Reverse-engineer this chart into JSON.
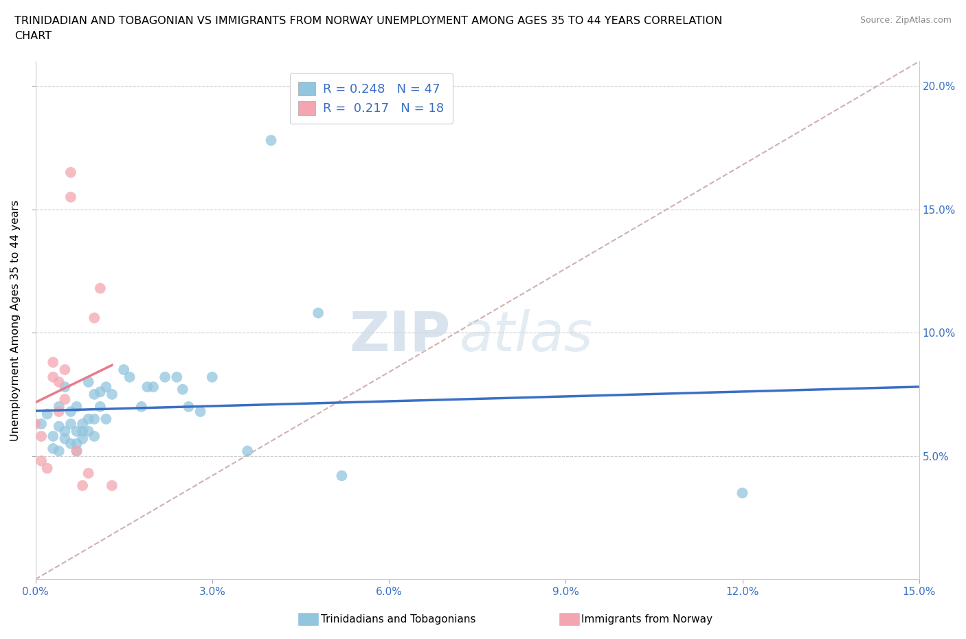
{
  "title": "TRINIDADIAN AND TOBAGONIAN VS IMMIGRANTS FROM NORWAY UNEMPLOYMENT AMONG AGES 35 TO 44 YEARS CORRELATION\nCHART",
  "source": "Source: ZipAtlas.com",
  "ylabel": "Unemployment Among Ages 35 to 44 years",
  "legend_label_blue": "Trinidadians and Tobagonians",
  "legend_label_pink": "Immigrants from Norway",
  "R_blue": 0.248,
  "N_blue": 47,
  "R_pink": 0.217,
  "N_pink": 18,
  "xlim": [
    0.0,
    0.15
  ],
  "ylim": [
    0.0,
    0.21
  ],
  "xticks": [
    0.0,
    0.03,
    0.06,
    0.09,
    0.12,
    0.15
  ],
  "yticks": [
    0.05,
    0.1,
    0.15,
    0.2
  ],
  "xtick_labels": [
    "0.0%",
    "3.0%",
    "6.0%",
    "9.0%",
    "12.0%",
    "15.0%"
  ],
  "ytick_labels_left": [],
  "ytick_labels_right": [
    "5.0%",
    "10.0%",
    "15.0%",
    "20.0%"
  ],
  "blue_scatter": [
    [
      0.001,
      0.063
    ],
    [
      0.002,
      0.067
    ],
    [
      0.003,
      0.058
    ],
    [
      0.003,
      0.053
    ],
    [
      0.004,
      0.062
    ],
    [
      0.004,
      0.07
    ],
    [
      0.004,
      0.052
    ],
    [
      0.005,
      0.06
    ],
    [
      0.005,
      0.078
    ],
    [
      0.005,
      0.057
    ],
    [
      0.006,
      0.063
    ],
    [
      0.006,
      0.068
    ],
    [
      0.006,
      0.055
    ],
    [
      0.007,
      0.07
    ],
    [
      0.007,
      0.055
    ],
    [
      0.007,
      0.052
    ],
    [
      0.007,
      0.06
    ],
    [
      0.008,
      0.06
    ],
    [
      0.008,
      0.057
    ],
    [
      0.008,
      0.063
    ],
    [
      0.009,
      0.06
    ],
    [
      0.009,
      0.065
    ],
    [
      0.009,
      0.08
    ],
    [
      0.01,
      0.058
    ],
    [
      0.01,
      0.065
    ],
    [
      0.01,
      0.075
    ],
    [
      0.011,
      0.07
    ],
    [
      0.011,
      0.076
    ],
    [
      0.012,
      0.065
    ],
    [
      0.012,
      0.078
    ],
    [
      0.013,
      0.075
    ],
    [
      0.015,
      0.085
    ],
    [
      0.016,
      0.082
    ],
    [
      0.018,
      0.07
    ],
    [
      0.019,
      0.078
    ],
    [
      0.02,
      0.078
    ],
    [
      0.022,
      0.082
    ],
    [
      0.024,
      0.082
    ],
    [
      0.025,
      0.077
    ],
    [
      0.026,
      0.07
    ],
    [
      0.028,
      0.068
    ],
    [
      0.03,
      0.082
    ],
    [
      0.036,
      0.052
    ],
    [
      0.04,
      0.178
    ],
    [
      0.048,
      0.108
    ],
    [
      0.052,
      0.042
    ],
    [
      0.12,
      0.035
    ]
  ],
  "pink_scatter": [
    [
      0.0,
      0.063
    ],
    [
      0.001,
      0.058
    ],
    [
      0.001,
      0.048
    ],
    [
      0.002,
      0.045
    ],
    [
      0.003,
      0.082
    ],
    [
      0.003,
      0.088
    ],
    [
      0.004,
      0.068
    ],
    [
      0.004,
      0.08
    ],
    [
      0.005,
      0.073
    ],
    [
      0.005,
      0.085
    ],
    [
      0.006,
      0.155
    ],
    [
      0.006,
      0.165
    ],
    [
      0.007,
      0.052
    ],
    [
      0.008,
      0.038
    ],
    [
      0.009,
      0.043
    ],
    [
      0.01,
      0.106
    ],
    [
      0.011,
      0.118
    ],
    [
      0.013,
      0.038
    ]
  ],
  "blue_color": "#92c5de",
  "pink_color": "#f4a6b0",
  "blue_line_color": "#3a6fc4",
  "pink_line_color": "#e87b8c",
  "dashed_line_color": "#d0b0b0",
  "watermark_zip": "ZIP",
  "watermark_atlas": "atlas",
  "background_color": "#ffffff"
}
